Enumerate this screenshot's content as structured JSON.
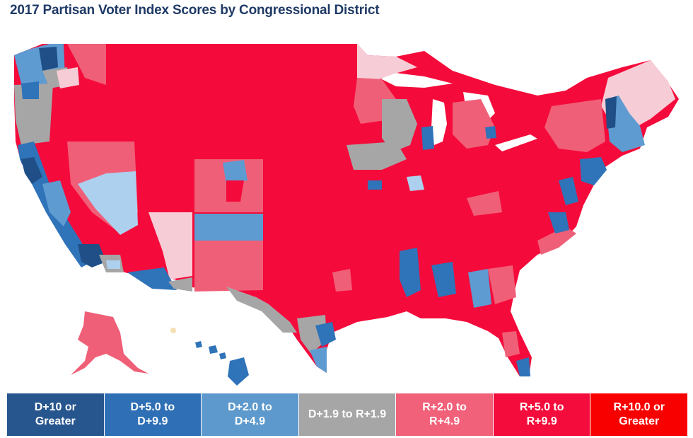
{
  "title": "2017 Partisan Voter Index Scores by Congressional District",
  "colors": {
    "d10": "#1f4f86",
    "d5": "#2f73b9",
    "d2": "#5e9bd1",
    "d2light": "#aed0ef",
    "even": "#a6a6a6",
    "r2": "#f05f78",
    "r2light": "#f6cdd6",
    "r5": "#f40b3b",
    "r10": "#f80000"
  },
  "legend": [
    {
      "label": "D+10 or\nGreater",
      "color": "#27568f"
    },
    {
      "label": "D+5.0 to\nD+9.9",
      "color": "#2e6fb5"
    },
    {
      "label": "D+2.0 to\nD+4.9",
      "color": "#5d99cc"
    },
    {
      "label": "D+1.9 to R+1.9",
      "color": "#a6a6a6"
    },
    {
      "label": "R+2.0 to\nR+4.9",
      "color": "#f1617a"
    },
    {
      "label": "R+5.0 to\nR+9.9",
      "color": "#f30c3c"
    },
    {
      "label": "R+10.0 or\nGreater",
      "color": "#f90000"
    }
  ]
}
